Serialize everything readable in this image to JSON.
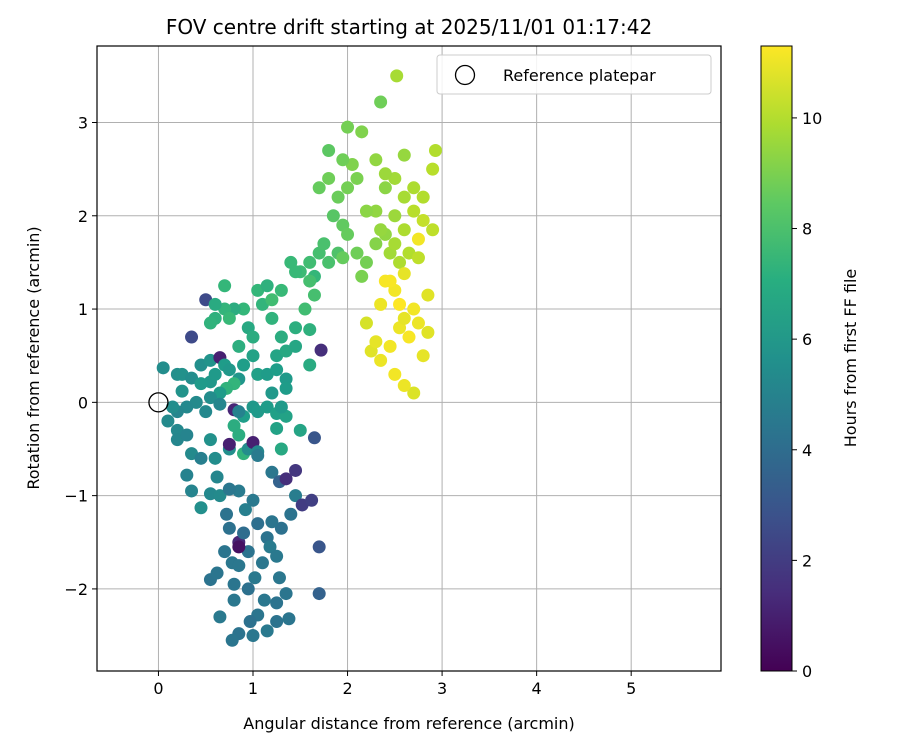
{
  "chart_data": {
    "type": "scatter",
    "title": "FOV centre drift starting at 2025/11/01 01:17:42",
    "xlabel": "Angular distance from reference (arcmin)",
    "ylabel": "Rotation from reference (arcmin)",
    "xlim": [
      -0.65,
      5.95
    ],
    "ylim": [
      -2.88,
      3.82
    ],
    "xticks": [
      0,
      1,
      2,
      3,
      4,
      5
    ],
    "xtick_labels": [
      "0",
      "1",
      "2",
      "3",
      "4",
      "5"
    ],
    "yticks": [
      -2,
      -1,
      0,
      1,
      2,
      3
    ],
    "ytick_labels": [
      "−2",
      "−1",
      "0",
      "1",
      "2",
      "3"
    ],
    "grid": true,
    "legend": {
      "placement": "top-right",
      "entries": [
        {
          "label": "Reference platepar",
          "marker": "open-circle"
        }
      ]
    },
    "reference_point": {
      "x": 0,
      "y": 0
    },
    "colorbar": {
      "label": "Hours from first FF file",
      "colormap": "viridis",
      "range": [
        0,
        11.3
      ],
      "ticks": [
        0,
        2,
        4,
        6,
        8,
        10
      ],
      "tick_labels": [
        "0",
        "2",
        "4",
        "6",
        "8",
        "10"
      ]
    },
    "points": [
      {
        "x": 0.05,
        "y": 0.37,
        "c": 5.5
      },
      {
        "x": 0.2,
        "y": 0.3,
        "c": 5.6
      },
      {
        "x": 0.25,
        "y": 0.3,
        "c": 5.7
      },
      {
        "x": 0.35,
        "y": 0.26,
        "c": 5.5
      },
      {
        "x": 0.45,
        "y": 0.4,
        "c": 5.6
      },
      {
        "x": 0.55,
        "y": 0.45,
        "c": 5.8
      },
      {
        "x": 0.65,
        "y": 0.48,
        "c": 1.0
      },
      {
        "x": 0.35,
        "y": 0.7,
        "c": 2.5
      },
      {
        "x": 0.5,
        "y": 1.1,
        "c": 2.5
      },
      {
        "x": 0.55,
        "y": 0.22,
        "c": 6.0
      },
      {
        "x": 0.6,
        "y": 0.3,
        "c": 6.1
      },
      {
        "x": 0.7,
        "y": 0.4,
        "c": 6.2
      },
      {
        "x": 0.75,
        "y": 0.35,
        "c": 6.0
      },
      {
        "x": 0.85,
        "y": 0.25,
        "c": 5.9
      },
      {
        "x": 0.9,
        "y": 0.4,
        "c": 6.3
      },
      {
        "x": 1.0,
        "y": 0.5,
        "c": 6.5
      },
      {
        "x": 1.05,
        "y": 0.3,
        "c": 6.4
      },
      {
        "x": 1.15,
        "y": 0.3,
        "c": 6.2
      },
      {
        "x": 1.25,
        "y": 0.35,
        "c": 6.3
      },
      {
        "x": 1.35,
        "y": 0.25,
        "c": 6.1
      },
      {
        "x": 1.25,
        "y": 0.5,
        "c": 6.6
      },
      {
        "x": 1.35,
        "y": 0.55,
        "c": 6.8
      },
      {
        "x": 1.45,
        "y": 0.6,
        "c": 6.7
      },
      {
        "x": 1.6,
        "y": 0.4,
        "c": 6.9
      },
      {
        "x": 1.72,
        "y": 0.56,
        "c": 1.5
      },
      {
        "x": 1.3,
        "y": 0.7,
        "c": 7.0
      },
      {
        "x": 1.45,
        "y": 0.8,
        "c": 7.1
      },
      {
        "x": 1.6,
        "y": 0.78,
        "c": 7.2
      },
      {
        "x": 1.2,
        "y": 0.9,
        "c": 7.3
      },
      {
        "x": 1.1,
        "y": 1.05,
        "c": 7.4
      },
      {
        "x": 1.05,
        "y": 1.2,
        "c": 7.5
      },
      {
        "x": 1.15,
        "y": 1.25,
        "c": 7.2
      },
      {
        "x": 1.3,
        "y": 1.2,
        "c": 7.6
      },
      {
        "x": 1.4,
        "y": 1.5,
        "c": 7.6
      },
      {
        "x": 1.5,
        "y": 1.4,
        "c": 7.7
      },
      {
        "x": 1.6,
        "y": 1.5,
        "c": 7.8
      },
      {
        "x": 1.7,
        "y": 1.6,
        "c": 7.9
      },
      {
        "x": 1.65,
        "y": 1.35,
        "c": 7.5
      },
      {
        "x": 1.8,
        "y": 1.5,
        "c": 8.0
      },
      {
        "x": 1.9,
        "y": 1.6,
        "c": 8.1
      },
      {
        "x": 1.75,
        "y": 1.7,
        "c": 8.0
      },
      {
        "x": 1.65,
        "y": 1.15,
        "c": 7.9
      },
      {
        "x": 1.2,
        "y": 1.1,
        "c": 7.8
      },
      {
        "x": 0.9,
        "y": 1.0,
        "c": 7.5
      },
      {
        "x": 0.8,
        "y": 1.0,
        "c": 7.0
      },
      {
        "x": 0.7,
        "y": 1.0,
        "c": 7.4
      },
      {
        "x": 0.6,
        "y": 0.9,
        "c": 7.2
      },
      {
        "x": 0.55,
        "y": 0.85,
        "c": 7.3
      },
      {
        "x": 0.75,
        "y": 0.9,
        "c": 7.6
      },
      {
        "x": 0.7,
        "y": 1.25,
        "c": 7.5
      },
      {
        "x": 0.6,
        "y": 1.05,
        "c": 6.9
      },
      {
        "x": 0.95,
        "y": 0.8,
        "c": 6.8
      },
      {
        "x": 1.0,
        "y": 0.7,
        "c": 7.0
      },
      {
        "x": 0.85,
        "y": 0.6,
        "c": 7.1
      },
      {
        "x": 0.8,
        "y": 0.2,
        "c": 7.4
      },
      {
        "x": 0.72,
        "y": 0.15,
        "c": 7.3
      },
      {
        "x": 0.65,
        "y": 0.1,
        "c": 6.2
      },
      {
        "x": 0.55,
        "y": 0.05,
        "c": 5.5
      },
      {
        "x": 0.4,
        "y": 0.0,
        "c": 5.4
      },
      {
        "x": 0.3,
        "y": -0.05,
        "c": 5.3
      },
      {
        "x": 0.2,
        "y": -0.1,
        "c": 5.2
      },
      {
        "x": 0.15,
        "y": -0.05,
        "c": 5.5
      },
      {
        "x": 0.2,
        "y": -0.3,
        "c": 5.3
      },
      {
        "x": 0.2,
        "y": -0.4,
        "c": 5.2
      },
      {
        "x": 0.3,
        "y": -0.35,
        "c": 5.1
      },
      {
        "x": 0.35,
        "y": -0.55,
        "c": 5.4
      },
      {
        "x": 0.3,
        "y": -0.78,
        "c": 5.0
      },
      {
        "x": 0.35,
        "y": -0.95,
        "c": 5.1
      },
      {
        "x": 0.45,
        "y": -1.13,
        "c": 5.6
      },
      {
        "x": 0.55,
        "y": -0.98,
        "c": 5.3
      },
      {
        "x": 0.65,
        "y": -1.0,
        "c": 5.4
      },
      {
        "x": 0.62,
        "y": -0.8,
        "c": 5.2
      },
      {
        "x": 0.45,
        "y": -0.6,
        "c": 4.9
      },
      {
        "x": 0.55,
        "y": -0.4,
        "c": 5.7
      },
      {
        "x": 0.6,
        "y": -0.6,
        "c": 5.5
      },
      {
        "x": 0.75,
        "y": -0.5,
        "c": 5.6
      },
      {
        "x": 0.75,
        "y": -0.45,
        "c": 1.0
      },
      {
        "x": 0.85,
        "y": -0.35,
        "c": 7.0
      },
      {
        "x": 0.9,
        "y": -0.55,
        "c": 7.3
      },
      {
        "x": 0.95,
        "y": -0.5,
        "c": 5.5
      },
      {
        "x": 1.0,
        "y": -0.43,
        "c": 1.0
      },
      {
        "x": 1.05,
        "y": -0.53,
        "c": 5.3
      },
      {
        "x": 1.05,
        "y": -0.57,
        "c": 4.7
      },
      {
        "x": 0.8,
        "y": -0.25,
        "c": 7.0
      },
      {
        "x": 0.9,
        "y": -0.15,
        "c": 6.3
      },
      {
        "x": 0.8,
        "y": -0.08,
        "c": 1.2
      },
      {
        "x": 0.85,
        "y": -0.1,
        "c": 5.0
      },
      {
        "x": 0.65,
        "y": -0.02,
        "c": 5.2
      },
      {
        "x": 1.0,
        "y": -0.05,
        "c": 6.0
      },
      {
        "x": 1.05,
        "y": -0.1,
        "c": 6.1
      },
      {
        "x": 1.15,
        "y": -0.05,
        "c": 6.2
      },
      {
        "x": 1.25,
        "y": -0.12,
        "c": 6.4
      },
      {
        "x": 1.35,
        "y": -0.15,
        "c": 6.5
      },
      {
        "x": 1.3,
        "y": -0.05,
        "c": 6.1
      },
      {
        "x": 1.2,
        "y": 0.1,
        "c": 6.0
      },
      {
        "x": 1.35,
        "y": 0.15,
        "c": 6.2
      },
      {
        "x": 1.25,
        "y": -0.28,
        "c": 6.5
      },
      {
        "x": 1.3,
        "y": -0.5,
        "c": 6.8
      },
      {
        "x": 1.5,
        "y": -0.3,
        "c": 6.6
      },
      {
        "x": 1.65,
        "y": -0.38,
        "c": 3.0
      },
      {
        "x": 1.2,
        "y": -0.75,
        "c": 4.5
      },
      {
        "x": 1.28,
        "y": -0.85,
        "c": 3.5
      },
      {
        "x": 1.35,
        "y": -0.82,
        "c": 1.5
      },
      {
        "x": 1.45,
        "y": -0.73,
        "c": 1.8
      },
      {
        "x": 1.45,
        "y": -1.0,
        "c": 4.8
      },
      {
        "x": 1.52,
        "y": -1.1,
        "c": 2.0
      },
      {
        "x": 1.62,
        "y": -1.05,
        "c": 2.1
      },
      {
        "x": 1.4,
        "y": -1.2,
        "c": 4.3
      },
      {
        "x": 1.3,
        "y": -1.35,
        "c": 4.2
      },
      {
        "x": 1.2,
        "y": -1.28,
        "c": 4.4
      },
      {
        "x": 1.15,
        "y": -1.45,
        "c": 4.3
      },
      {
        "x": 1.05,
        "y": -1.3,
        "c": 4.1
      },
      {
        "x": 1.0,
        "y": -1.05,
        "c": 4.6
      },
      {
        "x": 0.92,
        "y": -1.15,
        "c": 4.9
      },
      {
        "x": 0.85,
        "y": -0.95,
        "c": 4.7
      },
      {
        "x": 0.75,
        "y": -0.93,
        "c": 4.5
      },
      {
        "x": 0.72,
        "y": -1.2,
        "c": 4.3
      },
      {
        "x": 0.75,
        "y": -1.35,
        "c": 4.2
      },
      {
        "x": 0.7,
        "y": -1.6,
        "c": 4.4
      },
      {
        "x": 0.78,
        "y": -1.72,
        "c": 4.5
      },
      {
        "x": 0.85,
        "y": -1.5,
        "c": 1.2
      },
      {
        "x": 0.9,
        "y": -1.4,
        "c": 4.0
      },
      {
        "x": 0.95,
        "y": -1.6,
        "c": 4.3
      },
      {
        "x": 0.85,
        "y": -1.75,
        "c": 4.5
      },
      {
        "x": 0.8,
        "y": -1.95,
        "c": 4.4
      },
      {
        "x": 0.95,
        "y": -2.0,
        "c": 4.2
      },
      {
        "x": 1.02,
        "y": -1.88,
        "c": 4.6
      },
      {
        "x": 1.1,
        "y": -1.72,
        "c": 4.5
      },
      {
        "x": 1.18,
        "y": -1.55,
        "c": 4.7
      },
      {
        "x": 1.25,
        "y": -1.65,
        "c": 4.6
      },
      {
        "x": 1.28,
        "y": -1.88,
        "c": 4.5
      },
      {
        "x": 1.35,
        "y": -2.05,
        "c": 4.4
      },
      {
        "x": 1.25,
        "y": -2.15,
        "c": 4.3
      },
      {
        "x": 1.12,
        "y": -2.12,
        "c": 4.5
      },
      {
        "x": 1.05,
        "y": -2.28,
        "c": 4.4
      },
      {
        "x": 0.97,
        "y": -2.35,
        "c": 4.2
      },
      {
        "x": 0.85,
        "y": -2.48,
        "c": 4.3
      },
      {
        "x": 0.78,
        "y": -2.55,
        "c": 4.4
      },
      {
        "x": 1.0,
        "y": -2.5,
        "c": 4.5
      },
      {
        "x": 1.15,
        "y": -2.45,
        "c": 4.6
      },
      {
        "x": 1.25,
        "y": -2.35,
        "c": 4.3
      },
      {
        "x": 1.38,
        "y": -2.32,
        "c": 4.4
      },
      {
        "x": 0.65,
        "y": -2.3,
        "c": 4.6
      },
      {
        "x": 0.8,
        "y": -2.12,
        "c": 4.5
      },
      {
        "x": 0.55,
        "y": -1.9,
        "c": 4.3
      },
      {
        "x": 0.62,
        "y": -1.83,
        "c": 4.4
      },
      {
        "x": 1.7,
        "y": -2.05,
        "c": 3.5
      },
      {
        "x": 1.7,
        "y": -1.55,
        "c": 3.0
      },
      {
        "x": 0.85,
        "y": -1.55,
        "c": 0.5
      },
      {
        "x": 0.5,
        "y": -0.1,
        "c": 5.3
      },
      {
        "x": 0.1,
        "y": -0.2,
        "c": 5.4
      },
      {
        "x": 0.25,
        "y": 0.12,
        "c": 5.8
      },
      {
        "x": 0.45,
        "y": 0.2,
        "c": 6.1
      },
      {
        "x": 1.55,
        "y": 1.0,
        "c": 7.8
      },
      {
        "x": 1.6,
        "y": 1.3,
        "c": 7.9
      },
      {
        "x": 1.45,
        "y": 1.4,
        "c": 7.6
      },
      {
        "x": 1.7,
        "y": 2.3,
        "c": 8.6
      },
      {
        "x": 1.8,
        "y": 2.4,
        "c": 8.8
      },
      {
        "x": 1.9,
        "y": 2.2,
        "c": 8.7
      },
      {
        "x": 2.0,
        "y": 2.3,
        "c": 8.9
      },
      {
        "x": 2.1,
        "y": 2.4,
        "c": 9.0
      },
      {
        "x": 2.05,
        "y": 2.55,
        "c": 9.1
      },
      {
        "x": 1.95,
        "y": 2.6,
        "c": 8.8
      },
      {
        "x": 1.8,
        "y": 2.7,
        "c": 8.4
      },
      {
        "x": 2.0,
        "y": 2.95,
        "c": 8.9
      },
      {
        "x": 2.15,
        "y": 2.9,
        "c": 9.1
      },
      {
        "x": 2.35,
        "y": 3.22,
        "c": 8.8
      },
      {
        "x": 2.52,
        "y": 3.5,
        "c": 9.8
      },
      {
        "x": 1.85,
        "y": 2.0,
        "c": 8.3
      },
      {
        "x": 1.95,
        "y": 1.9,
        "c": 8.5
      },
      {
        "x": 2.0,
        "y": 1.8,
        "c": 8.6
      },
      {
        "x": 2.1,
        "y": 1.6,
        "c": 8.8
      },
      {
        "x": 2.2,
        "y": 1.5,
        "c": 8.9
      },
      {
        "x": 2.3,
        "y": 1.7,
        "c": 9.2
      },
      {
        "x": 2.4,
        "y": 1.8,
        "c": 9.4
      },
      {
        "x": 2.5,
        "y": 2.0,
        "c": 9.6
      },
      {
        "x": 2.6,
        "y": 2.2,
        "c": 9.8
      },
      {
        "x": 2.7,
        "y": 2.3,
        "c": 9.9
      },
      {
        "x": 2.8,
        "y": 2.2,
        "c": 10.0
      },
      {
        "x": 2.9,
        "y": 2.5,
        "c": 10.1
      },
      {
        "x": 2.93,
        "y": 2.7,
        "c": 10.0
      },
      {
        "x": 2.6,
        "y": 2.65,
        "c": 9.5
      },
      {
        "x": 2.5,
        "y": 2.4,
        "c": 9.7
      },
      {
        "x": 2.4,
        "y": 2.3,
        "c": 9.3
      },
      {
        "x": 2.3,
        "y": 2.05,
        "c": 9.4
      },
      {
        "x": 2.35,
        "y": 1.85,
        "c": 9.5
      },
      {
        "x": 2.45,
        "y": 1.6,
        "c": 9.7
      },
      {
        "x": 2.55,
        "y": 1.5,
        "c": 9.9
      },
      {
        "x": 2.65,
        "y": 1.6,
        "c": 10.0
      },
      {
        "x": 2.75,
        "y": 1.55,
        "c": 10.2
      },
      {
        "x": 2.8,
        "y": 1.95,
        "c": 10.3
      },
      {
        "x": 2.9,
        "y": 1.85,
        "c": 10.2
      },
      {
        "x": 2.7,
        "y": 2.05,
        "c": 10.1
      },
      {
        "x": 2.6,
        "y": 1.85,
        "c": 9.9
      },
      {
        "x": 2.5,
        "y": 1.7,
        "c": 9.8
      },
      {
        "x": 2.2,
        "y": 2.05,
        "c": 9.3
      },
      {
        "x": 2.15,
        "y": 1.35,
        "c": 9.0
      },
      {
        "x": 1.95,
        "y": 1.55,
        "c": 8.6
      },
      {
        "x": 2.3,
        "y": 2.6,
        "c": 9.4
      },
      {
        "x": 2.4,
        "y": 2.45,
        "c": 9.6
      },
      {
        "x": 2.2,
        "y": 0.85,
        "c": 10.6
      },
      {
        "x": 2.25,
        "y": 0.55,
        "c": 10.8
      },
      {
        "x": 2.35,
        "y": 0.45,
        "c": 11.0
      },
      {
        "x": 2.45,
        "y": 0.6,
        "c": 11.1
      },
      {
        "x": 2.55,
        "y": 0.8,
        "c": 11.0
      },
      {
        "x": 2.6,
        "y": 0.9,
        "c": 10.9
      },
      {
        "x": 2.7,
        "y": 1.0,
        "c": 11.1
      },
      {
        "x": 2.65,
        "y": 0.7,
        "c": 11.2
      },
      {
        "x": 2.75,
        "y": 0.85,
        "c": 11.0
      },
      {
        "x": 2.8,
        "y": 0.5,
        "c": 10.9
      },
      {
        "x": 2.85,
        "y": 0.75,
        "c": 10.8
      },
      {
        "x": 2.7,
        "y": 0.1,
        "c": 10.7
      },
      {
        "x": 2.6,
        "y": 0.18,
        "c": 11.0
      },
      {
        "x": 2.5,
        "y": 0.3,
        "c": 11.1
      },
      {
        "x": 2.4,
        "y": 1.3,
        "c": 11.2
      },
      {
        "x": 2.5,
        "y": 1.2,
        "c": 11.1
      },
      {
        "x": 2.55,
        "y": 1.05,
        "c": 11.3
      },
      {
        "x": 2.35,
        "y": 1.05,
        "c": 11.0
      },
      {
        "x": 2.45,
        "y": 1.3,
        "c": 11.2
      },
      {
        "x": 2.75,
        "y": 1.75,
        "c": 11.1
      },
      {
        "x": 2.85,
        "y": 1.15,
        "c": 10.8
      },
      {
        "x": 2.3,
        "y": 0.65,
        "c": 10.9
      },
      {
        "x": 2.6,
        "y": 1.38,
        "c": 10.9
      }
    ]
  }
}
